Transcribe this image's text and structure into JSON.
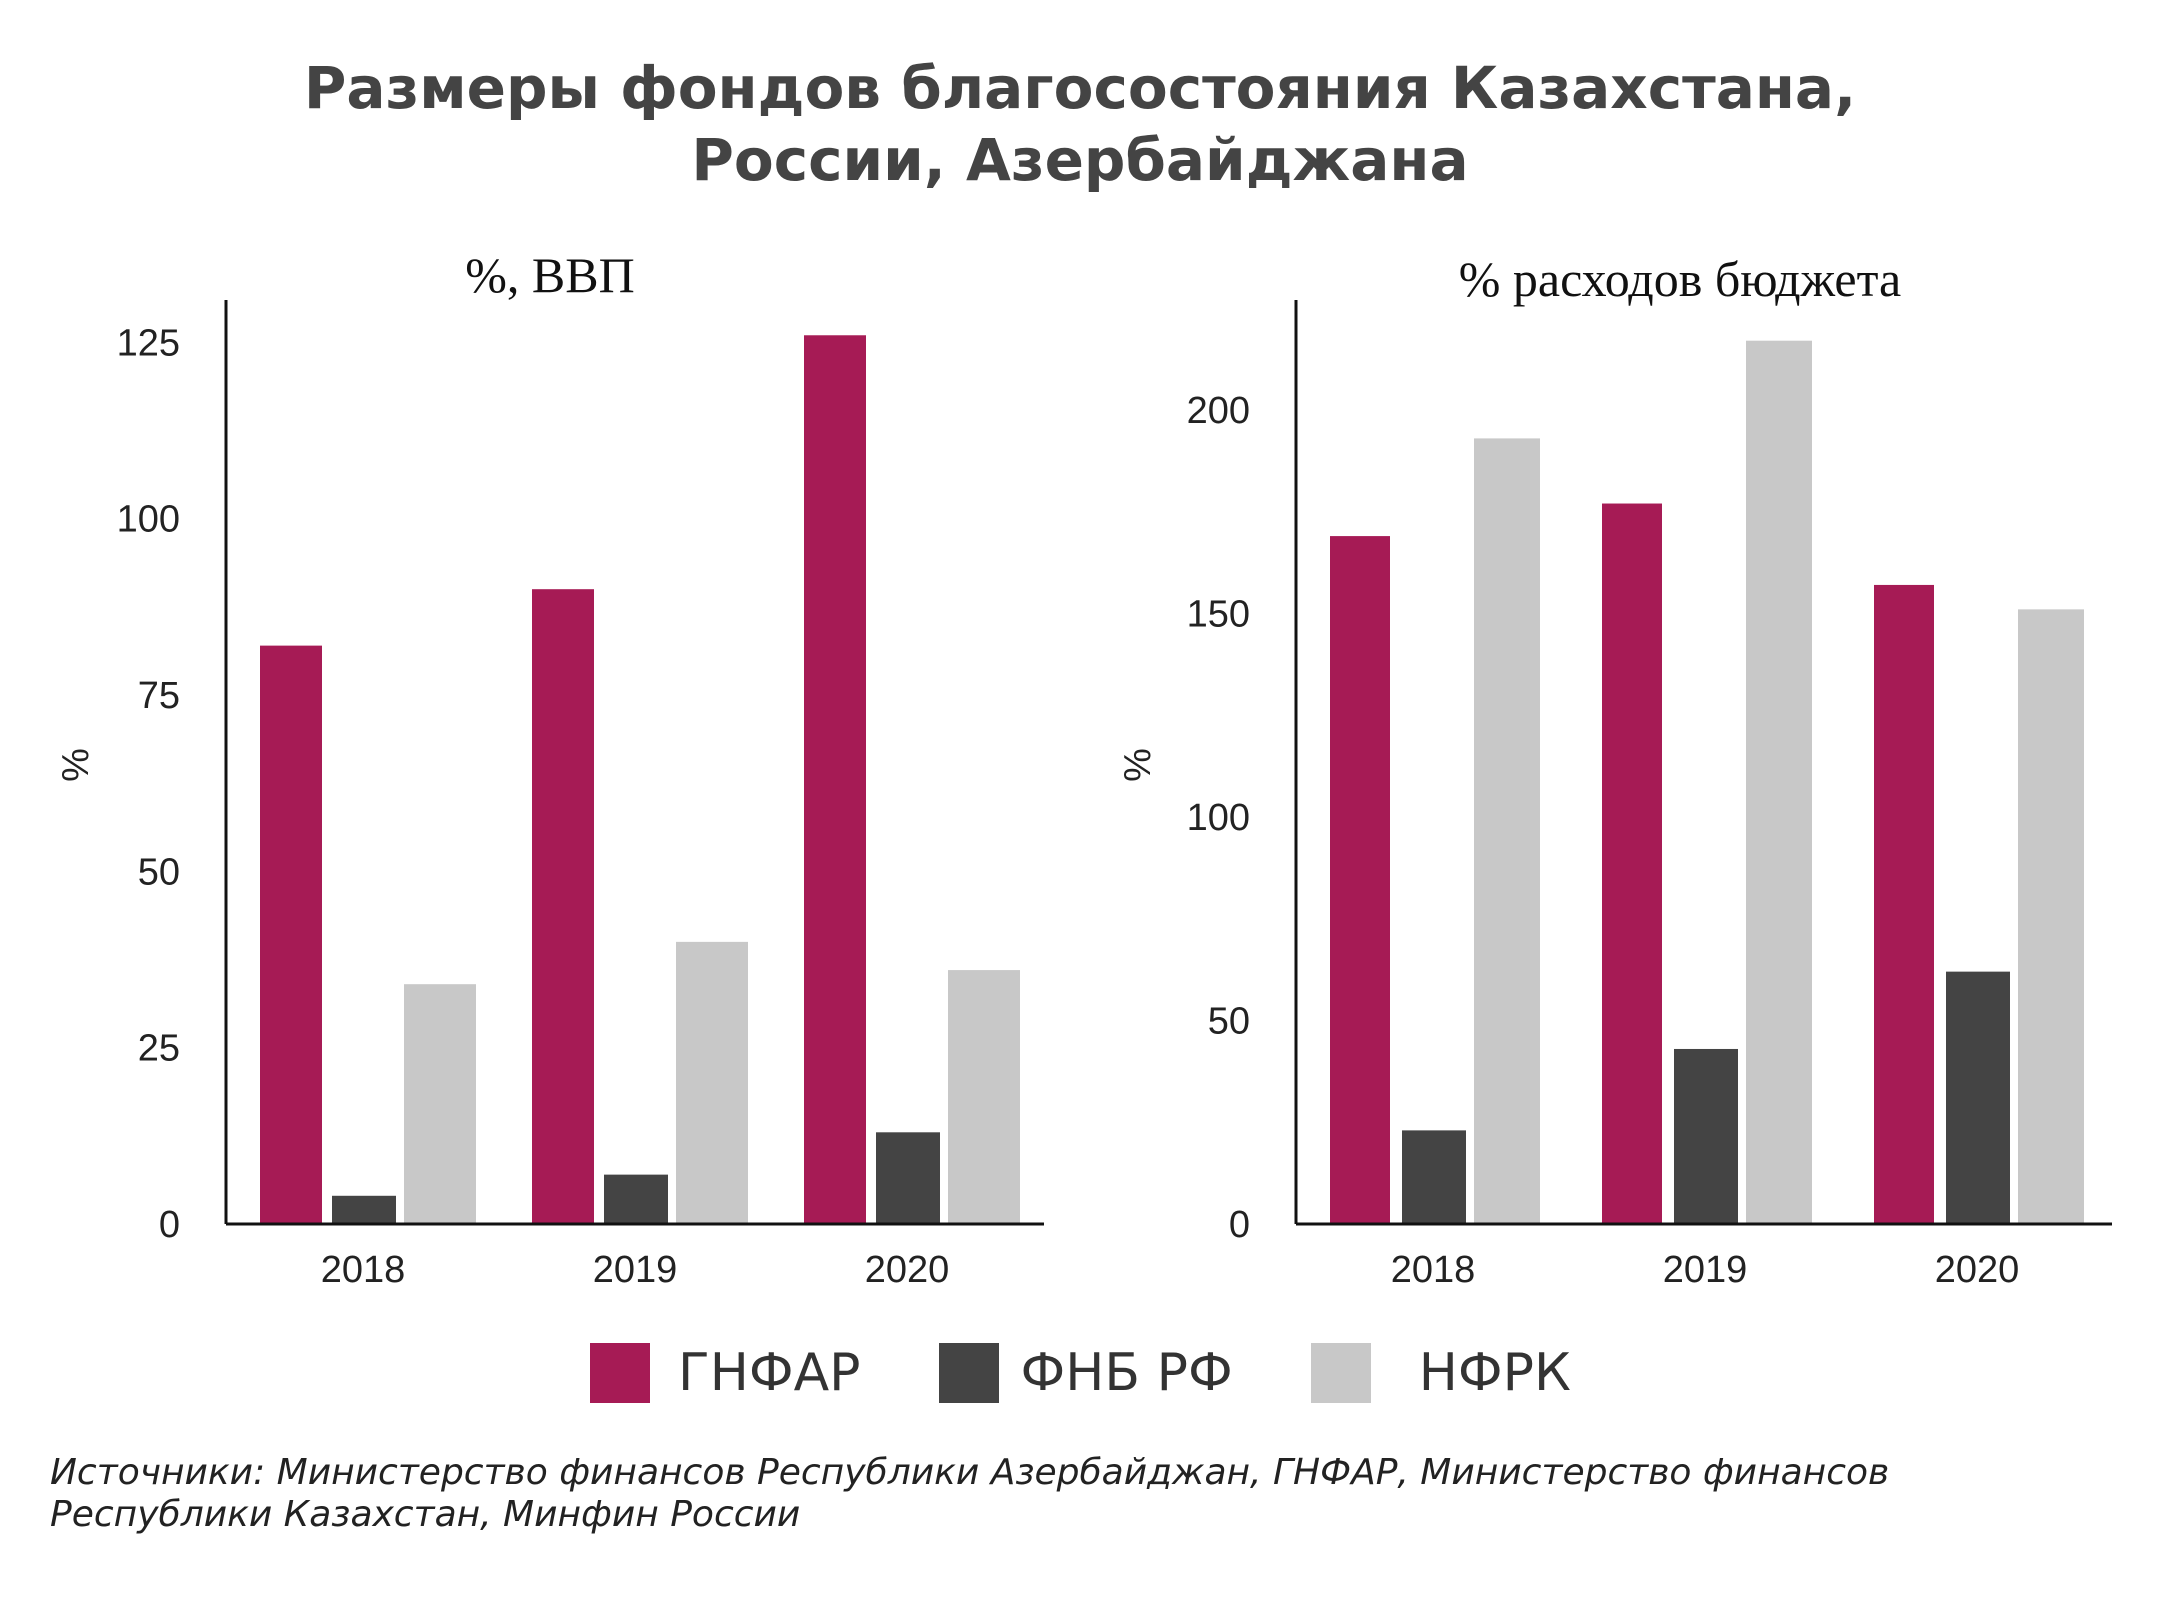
{
  "title_lines": [
    "Размеры фондов благосостояния Казахстана,",
    "России, Азербайджана"
  ],
  "legend": [
    {
      "label": "ГНФАР",
      "color": "#A61B55"
    },
    {
      "label": "ФНБ РФ",
      "color": "#444444"
    },
    {
      "label": "НФРК",
      "color": "#C8C8C8"
    }
  ],
  "source": {
    "line1": "Источники: Министерство финансов Республики Азербайджан, ГНФАР, Министерство финансов",
    "line2": "Республики Казахстан, Минфин России"
  },
  "chart_data": [
    {
      "type": "bar",
      "title": "%, ВВП",
      "ylabel": "%",
      "xlabel": "",
      "categories": [
        "2018",
        "2019",
        "2020"
      ],
      "ylim": [
        0,
        131
      ],
      "yticks": [
        0,
        25,
        50,
        75,
        100,
        125
      ],
      "series": [
        {
          "name": "ГНФАР",
          "color": "#A61B55",
          "values": [
            82,
            90,
            126
          ]
        },
        {
          "name": "ФНБ РФ",
          "color": "#444444",
          "values": [
            4,
            7,
            13
          ]
        },
        {
          "name": "НФРК",
          "color": "#C8C8C8",
          "values": [
            34,
            40,
            36
          ]
        }
      ],
      "grid": false,
      "legend": "bottom"
    },
    {
      "type": "bar",
      "title": "%  расходов бюджета",
      "ylabel": "%",
      "xlabel": "",
      "categories": [
        "2018",
        "2019",
        "2020"
      ],
      "ylim": [
        0,
        227
      ],
      "yticks": [
        0,
        50,
        100,
        150,
        200
      ],
      "series": [
        {
          "name": "ГНФАР",
          "color": "#A61B55",
          "values": [
            169,
            177,
            157
          ]
        },
        {
          "name": "ФНБ РФ",
          "color": "#444444",
          "values": [
            23,
            43,
            62
          ]
        },
        {
          "name": "НФРК",
          "color": "#C8C8C8",
          "values": [
            193,
            217,
            151
          ]
        }
      ],
      "grid": false,
      "legend": "bottom"
    }
  ]
}
